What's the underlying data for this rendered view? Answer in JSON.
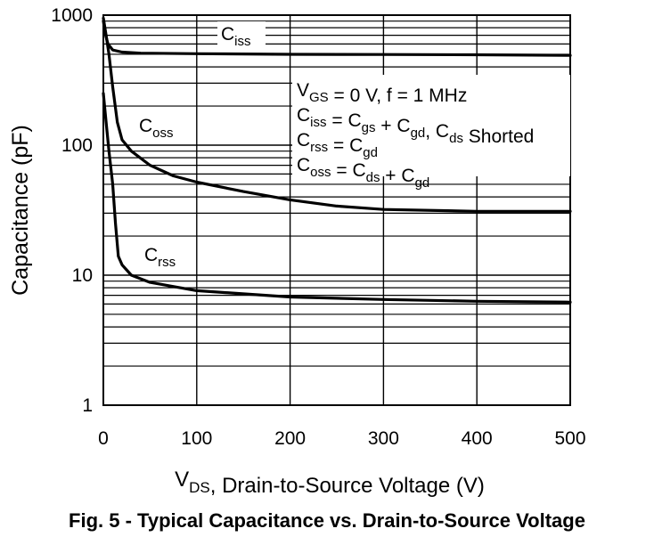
{
  "chart_data": {
    "type": "line",
    "yscale": "log",
    "xlim": [
      0,
      500
    ],
    "ylim": [
      1,
      1000
    ],
    "x_ticks": [
      "0",
      "100",
      "200",
      "300",
      "400",
      "500"
    ],
    "y_ticks": [
      "1",
      "10",
      "100",
      "1000"
    ],
    "ylabel": "Capacitance (pF)",
    "xlabel": {
      "main": "V",
      "sub": "DS",
      "rest": ", Drain-to-Source Voltage (V)"
    },
    "series": [
      {
        "name": "Ciss",
        "label": {
          "main": "C",
          "sub": "iss"
        },
        "x": [
          0,
          2,
          5,
          10,
          20,
          40,
          100,
          200,
          300,
          400,
          500
        ],
        "y": [
          900,
          720,
          600,
          540,
          520,
          510,
          505,
          500,
          498,
          496,
          490
        ]
      },
      {
        "name": "Coss",
        "label": {
          "main": "C",
          "sub": "oss"
        },
        "x": [
          0,
          3,
          6,
          10,
          15,
          20,
          30,
          50,
          75,
          100,
          150,
          200,
          250,
          300,
          400,
          500
        ],
        "y": [
          950,
          700,
          500,
          280,
          150,
          110,
          90,
          70,
          58,
          52,
          44,
          38,
          34,
          32,
          31,
          31
        ]
      },
      {
        "name": "Crss",
        "label": {
          "main": "C",
          "sub": "rss"
        },
        "x": [
          0,
          3,
          6,
          10,
          13,
          16,
          20,
          30,
          50,
          100,
          200,
          300,
          400,
          500
        ],
        "y": [
          250,
          150,
          90,
          50,
          25,
          14,
          12,
          10,
          8.8,
          7.6,
          6.8,
          6.5,
          6.3,
          6.2
        ]
      }
    ],
    "annotation_lines": [
      [
        {
          "t": "V"
        },
        {
          "t": "GS",
          "sub": true
        },
        {
          "t": " = 0 V, f = 1 MHz"
        }
      ],
      [
        {
          "t": "C"
        },
        {
          "t": "iss",
          "sub": true
        },
        {
          "t": " = C"
        },
        {
          "t": "gs",
          "sub": true
        },
        {
          "t": " + C"
        },
        {
          "t": "gd",
          "sub": true
        },
        {
          "t": ", C"
        },
        {
          "t": "ds",
          "sub": true
        },
        {
          "t": " Shorted"
        }
      ],
      [
        {
          "t": "C"
        },
        {
          "t": "rss",
          "sub": true
        },
        {
          "t": " = C"
        },
        {
          "t": "gd",
          "sub": true
        }
      ],
      [
        {
          "t": "C"
        },
        {
          "t": "oss",
          "sub": true
        },
        {
          "t": " = C"
        },
        {
          "t": "ds",
          "sub": true
        },
        {
          "t": " + C"
        },
        {
          "t": "gd",
          "sub": true
        }
      ]
    ]
  },
  "caption": "Fig. 5 - Typical Capacitance vs. Drain-to-Source Voltage"
}
